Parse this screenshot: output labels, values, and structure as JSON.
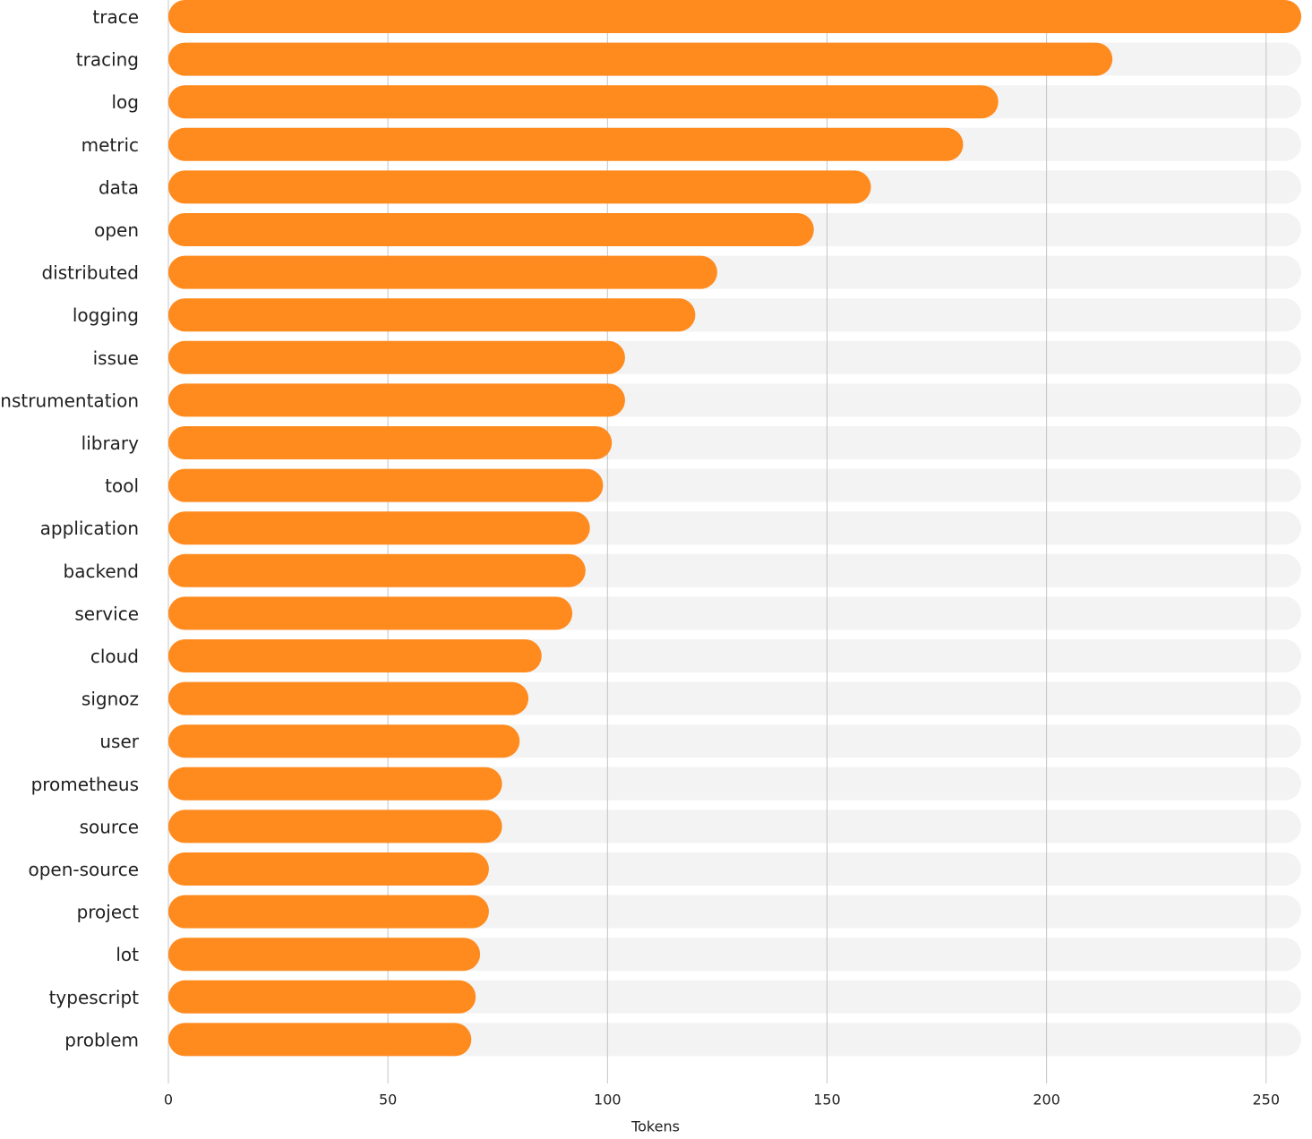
{
  "chart_data": {
    "type": "barh",
    "x_label": "Tokens",
    "categories": [
      "trace",
      "tracing",
      "log",
      "metric",
      "data",
      "open",
      "distributed",
      "logging",
      "issue",
      "instrumentation",
      "library",
      "tool",
      "application",
      "backend",
      "service",
      "cloud",
      "signoz",
      "user",
      "prometheus",
      "source",
      "open-source",
      "project",
      "lot",
      "typescript",
      "problem"
    ],
    "values": [
      258,
      215,
      189,
      181,
      160,
      147,
      125,
      120,
      104,
      104,
      101,
      99,
      96,
      95,
      92,
      85,
      82,
      80,
      76,
      76,
      73,
      73,
      71,
      70,
      69
    ],
    "color": "#ff8a1e",
    "xlim": [
      0,
      258
    ],
    "xticks": [
      0,
      50,
      100,
      150,
      200,
      250
    ],
    "grid": true
  }
}
